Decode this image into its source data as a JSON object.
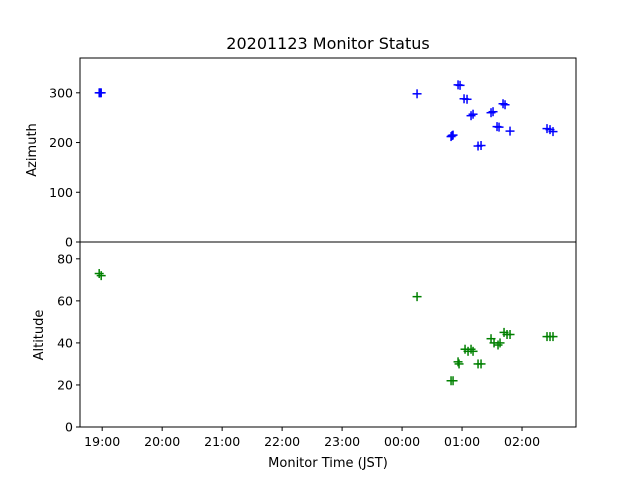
{
  "chart_data": {
    "type": "scatter",
    "title": "20201123 Monitor Status",
    "xlabel": "Monitor Time (JST)",
    "x_ticks": [
      "19:00",
      "20:00",
      "21:00",
      "22:00",
      "23:00",
      "00:00",
      "01:00",
      "02:00"
    ],
    "x_tick_hours": [
      19,
      20,
      21,
      22,
      23,
      24,
      25,
      26
    ],
    "xlim_hours": [
      18.63,
      26.9
    ],
    "x_note": "",
    "marker": "+",
    "panels": [
      {
        "name": "azimuth",
        "ylabel": "Azimuth",
        "ylim": [
          0,
          370
        ],
        "yticks": [
          0,
          100,
          200,
          300
        ],
        "color": "#0000ff",
        "points": [
          {
            "x": "18:57",
            "y": 300
          },
          {
            "x": "18:58",
            "y": 300
          },
          {
            "x": "18:59",
            "y": 300
          },
          {
            "x": "00:15",
            "y": 298
          },
          {
            "x": "00:49",
            "y": 212
          },
          {
            "x": "00:50",
            "y": 214
          },
          {
            "x": "00:51",
            "y": 215
          },
          {
            "x": "00:56",
            "y": 316
          },
          {
            "x": "00:58",
            "y": 315
          },
          {
            "x": "01:02",
            "y": 288
          },
          {
            "x": "01:05",
            "y": 287
          },
          {
            "x": "01:09",
            "y": 254
          },
          {
            "x": "01:11",
            "y": 257
          },
          {
            "x": "01:16",
            "y": 193
          },
          {
            "x": "01:19",
            "y": 194
          },
          {
            "x": "01:29",
            "y": 260
          },
          {
            "x": "01:31",
            "y": 262
          },
          {
            "x": "01:35",
            "y": 232
          },
          {
            "x": "01:37",
            "y": 231
          },
          {
            "x": "01:41",
            "y": 278
          },
          {
            "x": "01:43",
            "y": 276
          },
          {
            "x": "01:48",
            "y": 223
          },
          {
            "x": "02:25",
            "y": 228
          },
          {
            "x": "02:28",
            "y": 226
          },
          {
            "x": "02:31",
            "y": 222
          }
        ]
      },
      {
        "name": "altitude",
        "ylabel": "Altitude",
        "ylim": [
          0,
          88
        ],
        "yticks": [
          0,
          20,
          40,
          60,
          80
        ],
        "color": "#008000",
        "points": [
          {
            "x": "18:57",
            "y": 73
          },
          {
            "x": "18:59",
            "y": 72
          },
          {
            "x": "00:15",
            "y": 62
          },
          {
            "x": "00:49",
            "y": 22
          },
          {
            "x": "00:51",
            "y": 22
          },
          {
            "x": "00:56",
            "y": 31
          },
          {
            "x": "00:57",
            "y": 30
          },
          {
            "x": "01:03",
            "y": 37
          },
          {
            "x": "01:06",
            "y": 36
          },
          {
            "x": "01:09",
            "y": 37
          },
          {
            "x": "01:11",
            "y": 36
          },
          {
            "x": "01:16",
            "y": 30
          },
          {
            "x": "01:19",
            "y": 30
          },
          {
            "x": "01:29",
            "y": 42
          },
          {
            "x": "01:32",
            "y": 40
          },
          {
            "x": "01:36",
            "y": 39
          },
          {
            "x": "01:38",
            "y": 40
          },
          {
            "x": "01:42",
            "y": 45
          },
          {
            "x": "01:45",
            "y": 44
          },
          {
            "x": "01:48",
            "y": 44
          },
          {
            "x": "02:25",
            "y": 43
          },
          {
            "x": "02:28",
            "y": 43
          },
          {
            "x": "02:31",
            "y": 43
          }
        ]
      }
    ],
    "grid": false,
    "legend": "none"
  }
}
